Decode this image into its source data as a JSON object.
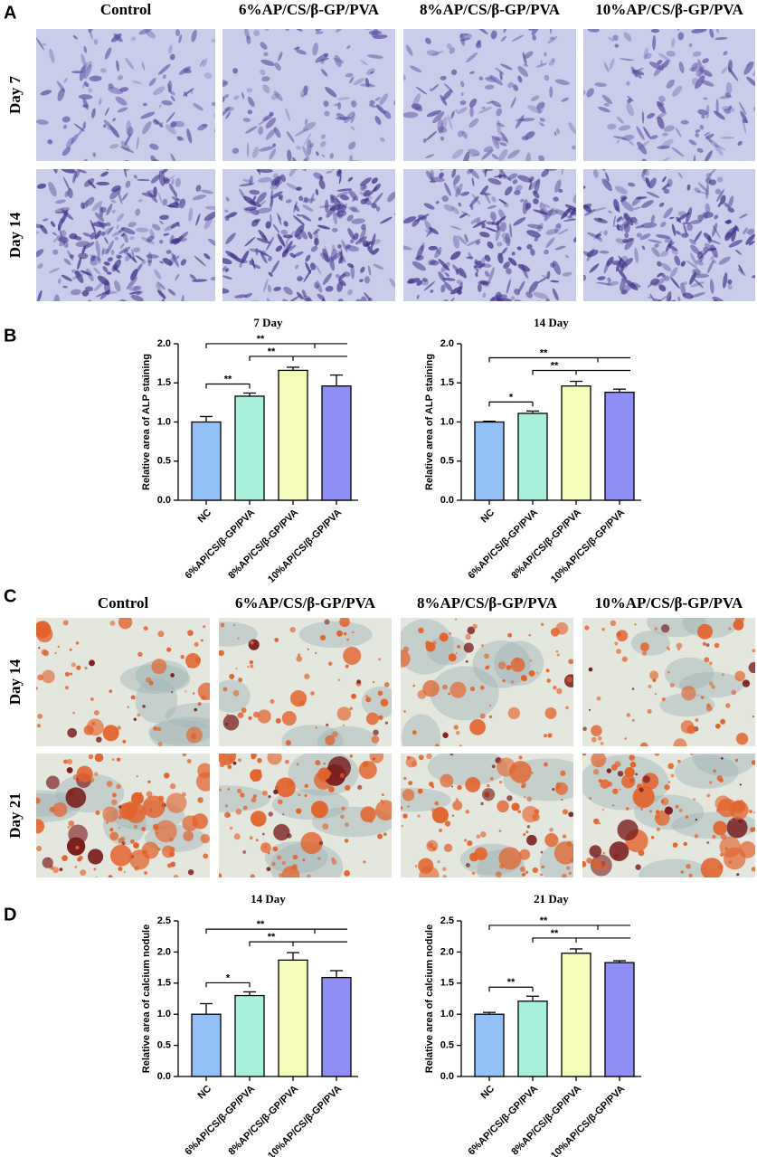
{
  "panel_a": {
    "label": "A",
    "columns": [
      "Control",
      "6%AP/CS/β-GP/PVA",
      "8%AP/CS/β-GP/PVA",
      "10%AP/CS/β-GP/PVA"
    ],
    "rows": [
      "Day 7",
      "Day 14"
    ]
  },
  "panel_b": {
    "label": "B"
  },
  "panel_c": {
    "label": "C",
    "columns": [
      "Control",
      "6%AP/CS/β-GP/PVA",
      "8%AP/CS/β-GP/PVA",
      "10%AP/CS/β-GP/PVA"
    ],
    "rows": [
      "Day 14",
      "Day 21"
    ]
  },
  "panel_d": {
    "label": "D"
  },
  "chart_data": [
    {
      "type": "bar",
      "title": "7 Day",
      "y_label": "Relative area of ALP staining",
      "categories": [
        "NC",
        "6%AP/CS/β-GP/PVA",
        "8%AP/CS/β-GP/PVA",
        "10%AP/CS/β-GP/PVA"
      ],
      "values": [
        1.0,
        1.33,
        1.66,
        1.46
      ],
      "errors": [
        0.07,
        0.04,
        0.04,
        0.14
      ],
      "colors": [
        "#93c1f7",
        "#a8f0dc",
        "#f6fcba",
        "#8e8ef6"
      ],
      "ylim": [
        0,
        2
      ],
      "yticks": [
        {
          "value": 0,
          "label": "0.0"
        },
        0.5,
        {
          "value": 1,
          "label": "1.0"
        },
        1.5,
        {
          "value": 2,
          "label": "2.0"
        }
      ],
      "annotations": [
        "**",
        "**",
        "**"
      ]
    },
    {
      "type": "bar",
      "title": "14 Day",
      "y_label": "Relative area of ALP staining",
      "categories": [
        "NC",
        "6%AP/CS/β-GP/PVA",
        "8%AP/CS/β-GP/PVA",
        "10%AP/CS/β-GP/PVA"
      ],
      "values": [
        1.0,
        1.11,
        1.46,
        1.38
      ],
      "errors": [
        0.01,
        0.03,
        0.06,
        0.04
      ],
      "colors": [
        "#93c1f7",
        "#a8f0dc",
        "#f6fcba",
        "#8e8ef6"
      ],
      "ylim": [
        0,
        2
      ],
      "yticks": [
        {
          "value": 0,
          "label": "0.0"
        },
        0.5,
        {
          "value": 1,
          "label": "1.0"
        },
        1.5,
        {
          "value": 2,
          "label": "2.0"
        }
      ],
      "annotations": [
        "*",
        "**",
        "**"
      ]
    },
    {
      "type": "bar",
      "title": "14 Day",
      "y_label": "Relative area of calcium nodule",
      "categories": [
        "NC",
        "6%AP/CS/β-GP/PVA",
        "8%AP/CS/β-GP/PVA",
        "10%AP/CS/β-GP/PVA"
      ],
      "values": [
        1.0,
        1.3,
        1.87,
        1.59
      ],
      "errors": [
        0.17,
        0.06,
        0.12,
        0.11
      ],
      "colors": [
        "#93c1f7",
        "#a8f0dc",
        "#f6fcba",
        "#8e8ef6"
      ],
      "ylim": [
        0,
        2.5
      ],
      "yticks": [
        {
          "value": 0,
          "label": "0.0"
        },
        0.5,
        {
          "value": 1,
          "label": "1.0"
        },
        1.5,
        {
          "value": 2,
          "label": "2.0"
        },
        2.5
      ],
      "annotations": [
        "*",
        "**",
        "**"
      ]
    },
    {
      "type": "bar",
      "title": "21 Day",
      "y_label": "Relative area of calcium nodule",
      "categories": [
        "NC",
        "6%AP/CS/β-GP/PVA",
        "8%AP/CS/β-GP/PVA",
        "10%AP/CS/β-GP/PVA"
      ],
      "values": [
        1.0,
        1.21,
        1.98,
        1.83
      ],
      "errors": [
        0.03,
        0.08,
        0.07,
        0.03
      ],
      "colors": [
        "#93c1f7",
        "#a8f0dc",
        "#f6fcba",
        "#8e8ef6"
      ],
      "ylim": [
        0,
        2.5
      ],
      "yticks": [
        {
          "value": 0,
          "label": "0.0"
        },
        0.5,
        {
          "value": 1,
          "label": "1.0"
        },
        1.5,
        {
          "value": 2,
          "label": "2.0"
        },
        2.5
      ],
      "annotations": [
        "**",
        "**",
        "**"
      ]
    }
  ]
}
